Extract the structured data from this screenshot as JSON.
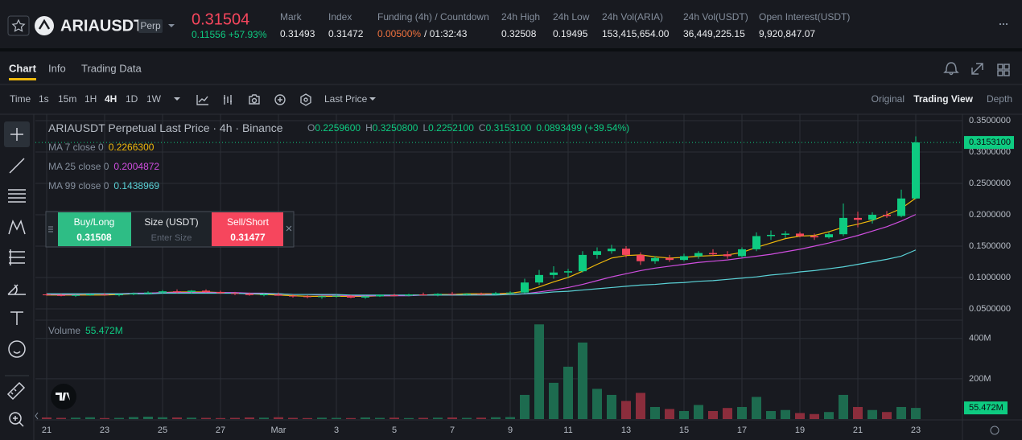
{
  "header": {
    "symbol": "ARIAUSDT",
    "contract": "Perp",
    "price": "0.31504",
    "change": "0.11556 +57.93%",
    "stats": [
      {
        "label": "Mark",
        "value": "0.31493"
      },
      {
        "label": "Index",
        "value": "0.31472"
      },
      {
        "label": "Funding (4h) / Countdown",
        "value": "0.00500%",
        "countdown": "/ 01:32:43"
      },
      {
        "label": "24h High",
        "value": "0.32508"
      },
      {
        "label": "24h Low",
        "value": "0.19495"
      },
      {
        "label": "24h Vol(ARIA)",
        "value": "153,415,654.00"
      },
      {
        "label": "24h Vol(USDT)",
        "value": "36,449,225.15"
      },
      {
        "label": "Open Interest(USDT)",
        "value": "9,920,847.07"
      }
    ]
  },
  "tabs": [
    "Chart",
    "Info",
    "Trading Data"
  ],
  "toolbar": {
    "intervals": [
      "Time",
      "1s",
      "15m",
      "1H",
      "4H",
      "1D",
      "1W"
    ],
    "price_source": "Last Price",
    "views": [
      "Original",
      "Trading View",
      "Depth"
    ]
  },
  "order_panel": {
    "buy": {
      "label": "Buy/Long",
      "price": "0.31508"
    },
    "size": {
      "label": "Size (USDT)",
      "placeholder": "Enter Size"
    },
    "sell": {
      "label": "Sell/Short",
      "price": "0.31477"
    }
  },
  "chart_data": {
    "type": "candlestick",
    "title": "ARIAUSDT Perpetual Last Price · 4h · Binance",
    "ohlc_legend": [
      {
        "key": "O",
        "value": "0.2259600"
      },
      {
        "key": "H",
        "value": "0.3250800"
      },
      {
        "key": "L",
        "value": "0.2252100"
      },
      {
        "key": "C",
        "value": "0.3153100"
      }
    ],
    "change": "0.0893499 (+39.54%)",
    "categories": [
      "21",
      null,
      null,
      null,
      "23",
      null,
      null,
      null,
      "25",
      null,
      null,
      null,
      "27",
      null,
      null,
      null,
      "Mar",
      null,
      null,
      null,
      "3",
      null,
      null,
      null,
      "5",
      null,
      null,
      null,
      "7",
      null,
      null,
      null,
      "9",
      null,
      null,
      null,
      "11",
      null,
      null,
      null,
      "13",
      null,
      null,
      null,
      "15",
      null,
      null,
      null,
      "17",
      null,
      null,
      null,
      "19",
      null,
      null,
      null,
      "21",
      null,
      null,
      null,
      "23"
    ],
    "open": [
      0.073,
      0.072,
      0.071,
      0.072,
      0.073,
      0.072,
      0.073,
      0.075,
      0.076,
      0.078,
      0.077,
      0.079,
      0.077,
      0.075,
      0.074,
      0.072,
      0.073,
      0.071,
      0.07,
      0.069,
      0.07,
      0.071,
      0.068,
      0.07,
      0.072,
      0.071,
      0.073,
      0.072,
      0.074,
      0.073,
      0.074,
      0.073,
      0.075,
      0.076,
      0.092,
      0.104,
      0.108,
      0.11,
      0.136,
      0.142,
      0.146,
      0.136,
      0.126,
      0.131,
      0.128,
      0.134,
      0.139,
      0.137,
      0.134,
      0.145,
      0.166,
      0.168,
      0.17,
      0.166,
      0.164,
      0.169,
      0.195,
      0.192,
      0.2,
      0.198,
      0.22596
    ],
    "high": [
      0.075,
      0.074,
      0.073,
      0.074,
      0.075,
      0.074,
      0.076,
      0.078,
      0.08,
      0.081,
      0.08,
      0.081,
      0.079,
      0.077,
      0.076,
      0.075,
      0.076,
      0.073,
      0.072,
      0.071,
      0.073,
      0.072,
      0.071,
      0.073,
      0.074,
      0.074,
      0.076,
      0.075,
      0.077,
      0.075,
      0.076,
      0.077,
      0.078,
      0.098,
      0.112,
      0.118,
      0.114,
      0.142,
      0.148,
      0.152,
      0.15,
      0.14,
      0.134,
      0.136,
      0.138,
      0.142,
      0.145,
      0.142,
      0.148,
      0.172,
      0.175,
      0.174,
      0.173,
      0.17,
      0.172,
      0.218,
      0.205,
      0.204,
      0.206,
      0.24,
      0.32508
    ],
    "low": [
      0.071,
      0.07,
      0.069,
      0.071,
      0.071,
      0.07,
      0.072,
      0.073,
      0.074,
      0.075,
      0.074,
      0.076,
      0.074,
      0.072,
      0.071,
      0.07,
      0.071,
      0.068,
      0.067,
      0.066,
      0.068,
      0.067,
      0.066,
      0.069,
      0.07,
      0.07,
      0.071,
      0.07,
      0.072,
      0.071,
      0.072,
      0.072,
      0.073,
      0.075,
      0.088,
      0.098,
      0.1,
      0.108,
      0.13,
      0.138,
      0.132,
      0.12,
      0.122,
      0.125,
      0.126,
      0.13,
      0.134,
      0.13,
      0.132,
      0.142,
      0.16,
      0.163,
      0.164,
      0.16,
      0.162,
      0.166,
      0.18,
      0.186,
      0.195,
      0.196,
      0.22521
    ],
    "close": [
      0.072,
      0.071,
      0.072,
      0.073,
      0.072,
      0.073,
      0.075,
      0.076,
      0.078,
      0.077,
      0.079,
      0.077,
      0.075,
      0.074,
      0.072,
      0.073,
      0.071,
      0.07,
      0.069,
      0.07,
      0.071,
      0.068,
      0.07,
      0.072,
      0.071,
      0.073,
      0.072,
      0.074,
      0.073,
      0.074,
      0.073,
      0.075,
      0.076,
      0.092,
      0.104,
      0.108,
      0.11,
      0.136,
      0.142,
      0.146,
      0.136,
      0.126,
      0.131,
      0.128,
      0.134,
      0.139,
      0.137,
      0.134,
      0.145,
      0.166,
      0.168,
      0.17,
      0.166,
      0.164,
      0.169,
      0.195,
      0.192,
      0.2,
      0.198,
      0.226,
      0.31531
    ],
    "series": [
      {
        "name": "MA 7 close 0",
        "color": "#f0b90b",
        "last_label": "0.2266300",
        "values": [
          0.072,
          0.072,
          0.072,
          0.072,
          0.072,
          0.073,
          0.074,
          0.075,
          0.076,
          0.077,
          0.077,
          0.077,
          0.076,
          0.075,
          0.074,
          0.073,
          0.072,
          0.071,
          0.07,
          0.07,
          0.07,
          0.07,
          0.07,
          0.071,
          0.071,
          0.072,
          0.072,
          0.073,
          0.073,
          0.074,
          0.074,
          0.074,
          0.075,
          0.078,
          0.085,
          0.093,
          0.1,
          0.11,
          0.121,
          0.131,
          0.135,
          0.136,
          0.133,
          0.131,
          0.132,
          0.134,
          0.135,
          0.136,
          0.14,
          0.148,
          0.155,
          0.162,
          0.166,
          0.167,
          0.173,
          0.18,
          0.185,
          0.191,
          0.2,
          0.21,
          0.22663
        ]
      },
      {
        "name": "MA 25 close 0",
        "color": "#d04ee0",
        "last_label": "0.2004872",
        "values": [
          0.073,
          0.073,
          0.073,
          0.074,
          0.074,
          0.074,
          0.075,
          0.075,
          0.076,
          0.076,
          0.076,
          0.076,
          0.076,
          0.076,
          0.075,
          0.075,
          0.074,
          0.073,
          0.073,
          0.072,
          0.072,
          0.071,
          0.071,
          0.071,
          0.071,
          0.071,
          0.072,
          0.072,
          0.072,
          0.072,
          0.073,
          0.073,
          0.073,
          0.074,
          0.077,
          0.08,
          0.084,
          0.089,
          0.095,
          0.101,
          0.106,
          0.111,
          0.115,
          0.118,
          0.121,
          0.124,
          0.126,
          0.128,
          0.131,
          0.134,
          0.137,
          0.141,
          0.145,
          0.15,
          0.155,
          0.161,
          0.167,
          0.174,
          0.181,
          0.19,
          0.2004872
        ]
      },
      {
        "name": "MA 99 close 0",
        "color": "#5ad1d6",
        "last_label": "0.1438969",
        "values": [
          0.074,
          0.074,
          0.074,
          0.074,
          0.074,
          0.074,
          0.074,
          0.074,
          0.075,
          0.075,
          0.075,
          0.075,
          0.075,
          0.075,
          0.074,
          0.074,
          0.074,
          0.073,
          0.073,
          0.073,
          0.073,
          0.072,
          0.072,
          0.072,
          0.072,
          0.072,
          0.072,
          0.072,
          0.072,
          0.072,
          0.072,
          0.072,
          0.073,
          0.074,
          0.075,
          0.077,
          0.078,
          0.08,
          0.082,
          0.084,
          0.086,
          0.088,
          0.089,
          0.091,
          0.092,
          0.094,
          0.095,
          0.097,
          0.099,
          0.101,
          0.104,
          0.106,
          0.109,
          0.111,
          0.114,
          0.117,
          0.121,
          0.125,
          0.129,
          0.134,
          0.1438969
        ]
      }
    ],
    "ylim": [
      0.0333,
      0.3603
    ],
    "yticks": [
      {
        "value": 0.35,
        "label": "0.3500000"
      },
      {
        "value": 0.3,
        "label": "0.3000000"
      },
      {
        "value": 0.25,
        "label": "0.2500000"
      },
      {
        "value": 0.2,
        "label": "0.2000000"
      },
      {
        "value": 0.15,
        "label": "0.1500000"
      },
      {
        "value": 0.1,
        "label": "0.1000000"
      },
      {
        "value": 0.05,
        "label": "0.0500000"
      }
    ],
    "last_price": {
      "value": 0.31531,
      "label": "0.3153100"
    },
    "volume": {
      "name": "Volume",
      "values": [
        8,
        6,
        7,
        9,
        5,
        6,
        10,
        12,
        9,
        8,
        7,
        6,
        5,
        6,
        8,
        7,
        9,
        6,
        5,
        7,
        6,
        5,
        8,
        6,
        7,
        5,
        6,
        7,
        8,
        6,
        7,
        9,
        10,
        120,
        470,
        180,
        260,
        380,
        150,
        120,
        90,
        130,
        60,
        50,
        40,
        70,
        40,
        55,
        60,
        110,
        40,
        45,
        30,
        25,
        35,
        120,
        60,
        45,
        35,
        60,
        55.472
      ],
      "last_label": "55.472M",
      "ylim": [
        0,
        483
      ],
      "yticks": [
        {
          "value": 200,
          "label": "200M"
        },
        {
          "value": 400,
          "label": "400M"
        }
      ]
    },
    "up_color": "#0ecb81",
    "down_color": "#f6465d",
    "grid": true
  }
}
